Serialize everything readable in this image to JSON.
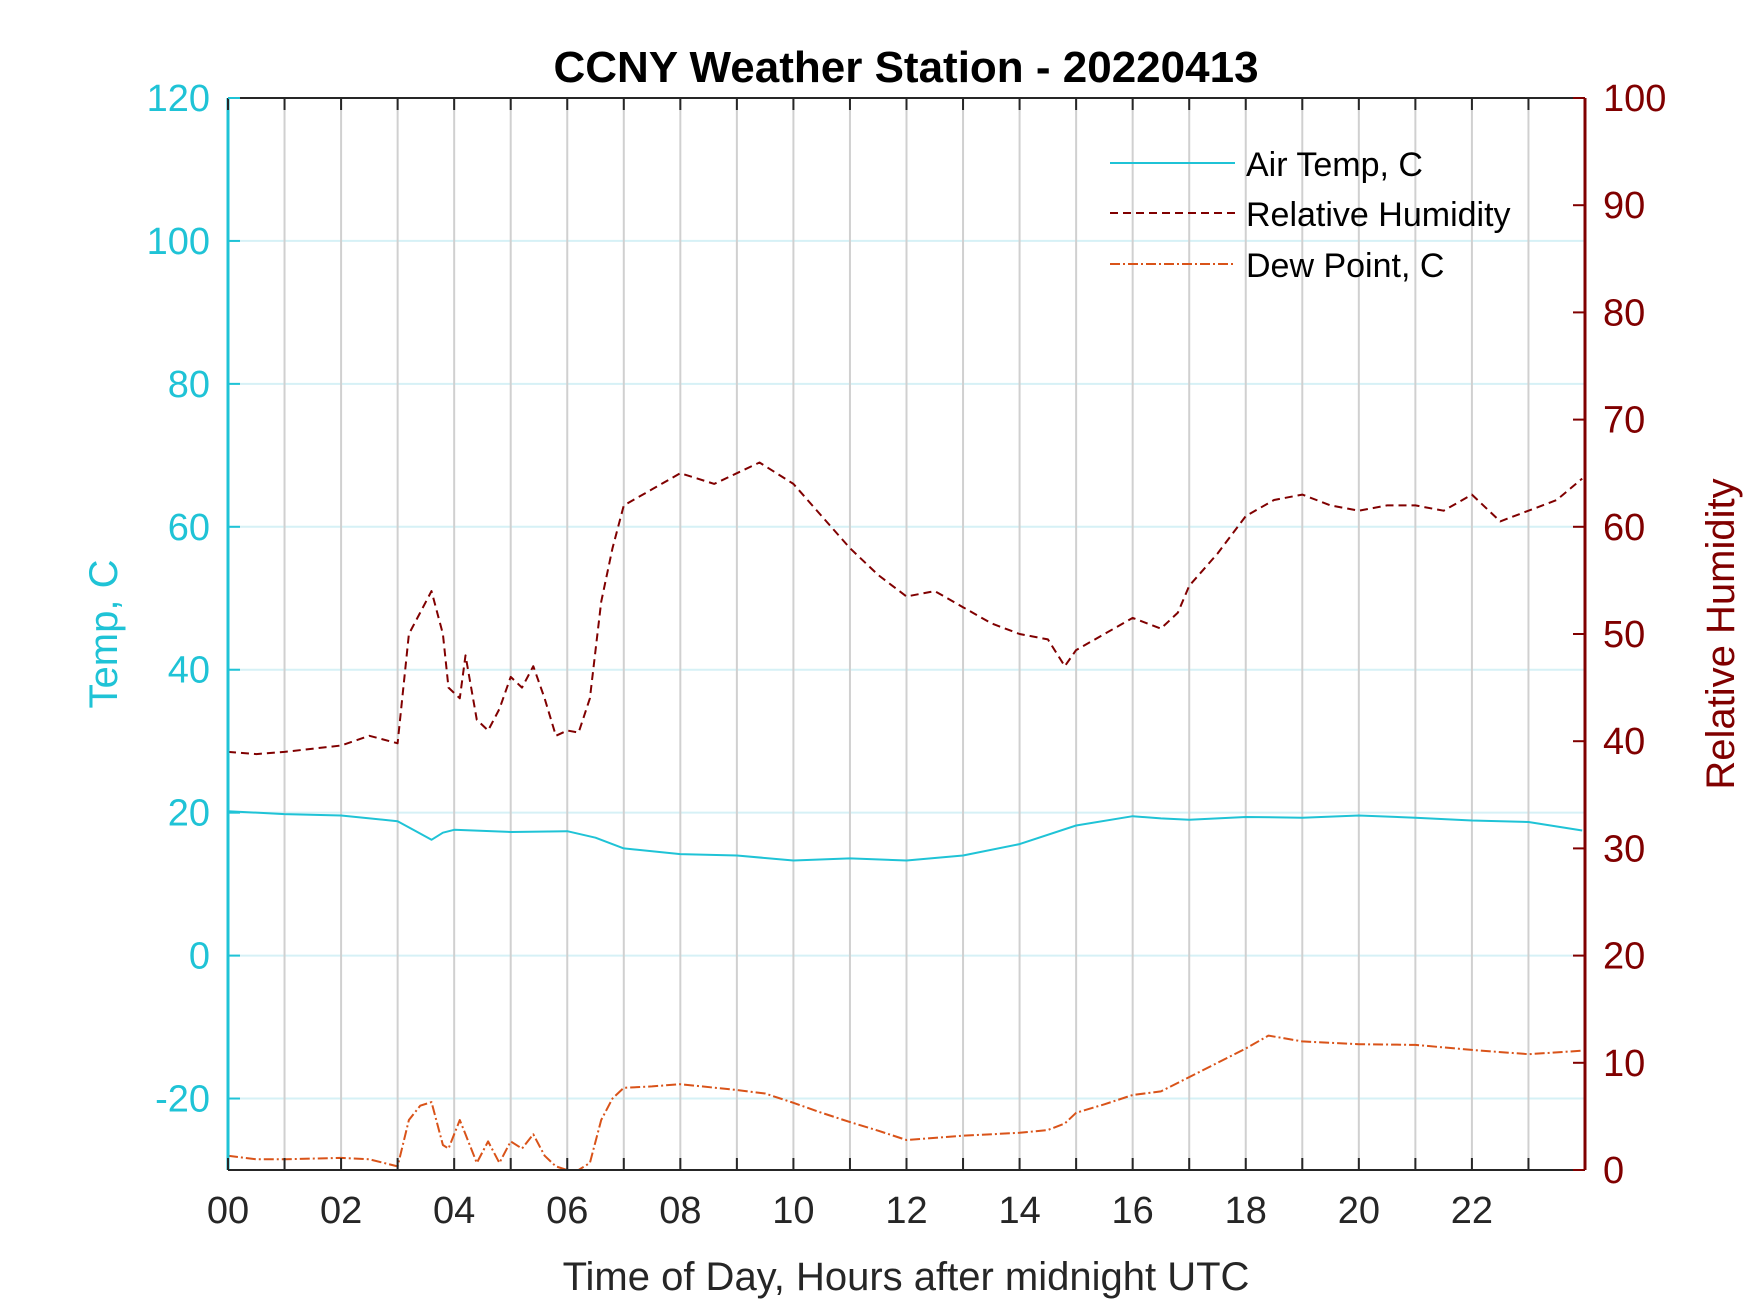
{
  "colors": {
    "temp": "#1fc3d6",
    "rh": "#800000",
    "dew": "#d95319",
    "grid_h": "#d6f1f6",
    "grid_v": "#d0d0d0",
    "axis_dark": "#262626"
  },
  "chart_data": {
    "type": "line",
    "title": "CCNY Weather Station - 20220413",
    "xlabel": "Time of Day, Hours after midnight UTC",
    "ylabel_left": "Temp, C",
    "ylabel_right": "Relative Humidity",
    "xlim": [
      0,
      24
    ],
    "ylim_left": [
      -30,
      120
    ],
    "ylim_right": [
      0,
      100
    ],
    "x_ticks": [
      0,
      2,
      4,
      6,
      8,
      10,
      12,
      14,
      16,
      18,
      20,
      22
    ],
    "x_tick_labels": [
      "00",
      "02",
      "04",
      "06",
      "08",
      "10",
      "12",
      "14",
      "16",
      "18",
      "20",
      "22"
    ],
    "y_left_ticks": [
      -20,
      0,
      20,
      40,
      60,
      80,
      100,
      120
    ],
    "y_left_tick_labels": [
      "-20",
      "0",
      "20",
      "40",
      "60",
      "80",
      "100",
      "120"
    ],
    "y_right_ticks": [
      0,
      10,
      20,
      30,
      40,
      50,
      60,
      70,
      80,
      90,
      100
    ],
    "y_right_tick_labels": [
      "0",
      "10",
      "20",
      "30",
      "40",
      "50",
      "60",
      "70",
      "80",
      "90",
      "100"
    ],
    "grid": true,
    "legend_position": "top-right",
    "series": [
      {
        "name": "Air Temp, C",
        "axis": "left",
        "style": "solid",
        "x": [
          0,
          1,
          2,
          3,
          3.3,
          3.6,
          3.8,
          4,
          5,
          6,
          6.5,
          7,
          8,
          9,
          10,
          11,
          12,
          13,
          14,
          15,
          16,
          16.5,
          17,
          18,
          19,
          20,
          21,
          22,
          23,
          23.95
        ],
        "y": [
          20.2,
          19.8,
          19.6,
          18.8,
          17.5,
          16.2,
          17.2,
          17.6,
          17.3,
          17.4,
          16.5,
          15.0,
          14.2,
          14.0,
          13.3,
          13.6,
          13.3,
          14.0,
          15.6,
          18.2,
          19.5,
          19.2,
          19.0,
          19.4,
          19.3,
          19.6,
          19.3,
          18.9,
          18.7,
          17.5
        ]
      },
      {
        "name": "Relative Humidity",
        "axis": "right",
        "style": "dashed",
        "x": [
          0,
          0.5,
          1,
          2,
          2.5,
          3,
          3.2,
          3.4,
          3.6,
          3.8,
          3.9,
          4.1,
          4.2,
          4.4,
          4.6,
          4.8,
          5.0,
          5.2,
          5.4,
          5.6,
          5.8,
          6.0,
          6.2,
          6.4,
          6.6,
          6.8,
          7.0,
          7.5,
          8.0,
          8.6,
          9.0,
          9.4,
          10.0,
          10.5,
          11.0,
          11.5,
          12.0,
          12.5,
          13.0,
          13.5,
          14.0,
          14.5,
          14.8,
          15.0,
          15.5,
          16.0,
          16.5,
          16.8,
          17.0,
          17.5,
          18.0,
          18.5,
          19.0,
          19.5,
          20.0,
          20.5,
          21.0,
          21.5,
          22.0,
          22.5,
          23.0,
          23.5,
          23.95
        ],
        "y": [
          39,
          38.8,
          39,
          39.6,
          40.5,
          39.8,
          50,
          52,
          54,
          50,
          45,
          44,
          48,
          42,
          41,
          43,
          46,
          45,
          47,
          44,
          40.5,
          41,
          40.8,
          44,
          53,
          58,
          62,
          63.5,
          65,
          64,
          65,
          66,
          64,
          61,
          58,
          55.5,
          53.5,
          54,
          52.5,
          51,
          50,
          49.5,
          47,
          48.5,
          50,
          51.5,
          50.5,
          52,
          54.5,
          57.5,
          61,
          62.5,
          63,
          62,
          61.5,
          62,
          62,
          61.5,
          63,
          60.5,
          61.5,
          62.5,
          64.5
        ]
      },
      {
        "name": "Dew Point, C",
        "axis": "left",
        "style": "dash-dot",
        "x": [
          0,
          0.5,
          1,
          2,
          2.5,
          3.0,
          3.2,
          3.4,
          3.6,
          3.8,
          3.9,
          4.1,
          4.2,
          4.4,
          4.6,
          4.8,
          5.0,
          5.2,
          5.4,
          5.6,
          5.8,
          6.0,
          6.2,
          6.4,
          6.6,
          6.8,
          7.0,
          7.5,
          8.0,
          9.0,
          9.5,
          10.0,
          10.5,
          11.0,
          11.5,
          12.0,
          13.0,
          14.0,
          14.5,
          14.8,
          15.0,
          15.5,
          16.0,
          16.5,
          17.0,
          17.5,
          18.0,
          18.4,
          19.0,
          20.0,
          21.0,
          22.0,
          23.0,
          23.95
        ],
        "y": [
          -28,
          -28.5,
          -28.5,
          -28.3,
          -28.5,
          -29.5,
          -23,
          -21,
          -20.5,
          -26.5,
          -27,
          -23,
          -25,
          -29,
          -26,
          -29,
          -26,
          -27,
          -25,
          -28,
          -29.5,
          -30,
          -30,
          -29,
          -23,
          -20,
          -18.5,
          -18.3,
          -18,
          -18.8,
          -19.3,
          -20.6,
          -22,
          -23.3,
          -24.5,
          -25.8,
          -25.2,
          -24.8,
          -24.4,
          -23.5,
          -22,
          -20.8,
          -19.5,
          -19,
          -17,
          -15,
          -13,
          -11.2,
          -12,
          -12.4,
          -12.5,
          -13.2,
          -13.8,
          -13.3
        ]
      }
    ]
  }
}
